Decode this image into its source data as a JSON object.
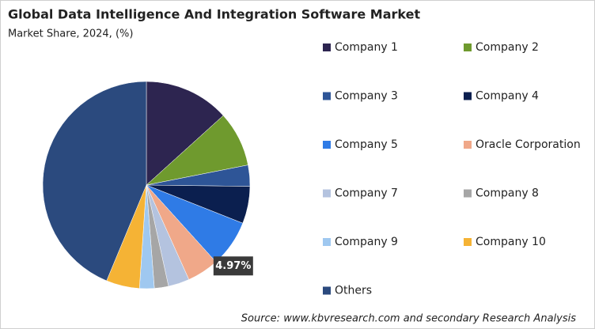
{
  "chart_data": {
    "type": "pie",
    "title": "Global Data Intelligence And Integration Software Market",
    "subtitle": "Market Share, 2024, (%)",
    "categories": [
      "Company 1",
      "Company 2",
      "Company 3",
      "Company 4",
      "Company 5",
      "Oracle Corporation",
      "Company 7",
      "Company 8",
      "Company 9",
      "Company 10",
      "Others"
    ],
    "values": [
      13.3,
      8.6,
      3.3,
      5.8,
      7.3,
      4.97,
      3.3,
      2.2,
      2.3,
      5.2,
      43.73
    ],
    "value_labels": [
      null,
      null,
      null,
      null,
      null,
      "4.97%",
      null,
      null,
      null,
      null,
      null
    ],
    "colors": [
      "#2d2550",
      "#6f9a2e",
      "#2e5597",
      "#0b1f4f",
      "#2f7be6",
      "#f0a889",
      "#b4c3df",
      "#a6a6a6",
      "#9fc8f0",
      "#f5b335",
      "#2b4a7e"
    ],
    "source": "Source: www.kbvresearch.com and secondary Research Analysis"
  }
}
